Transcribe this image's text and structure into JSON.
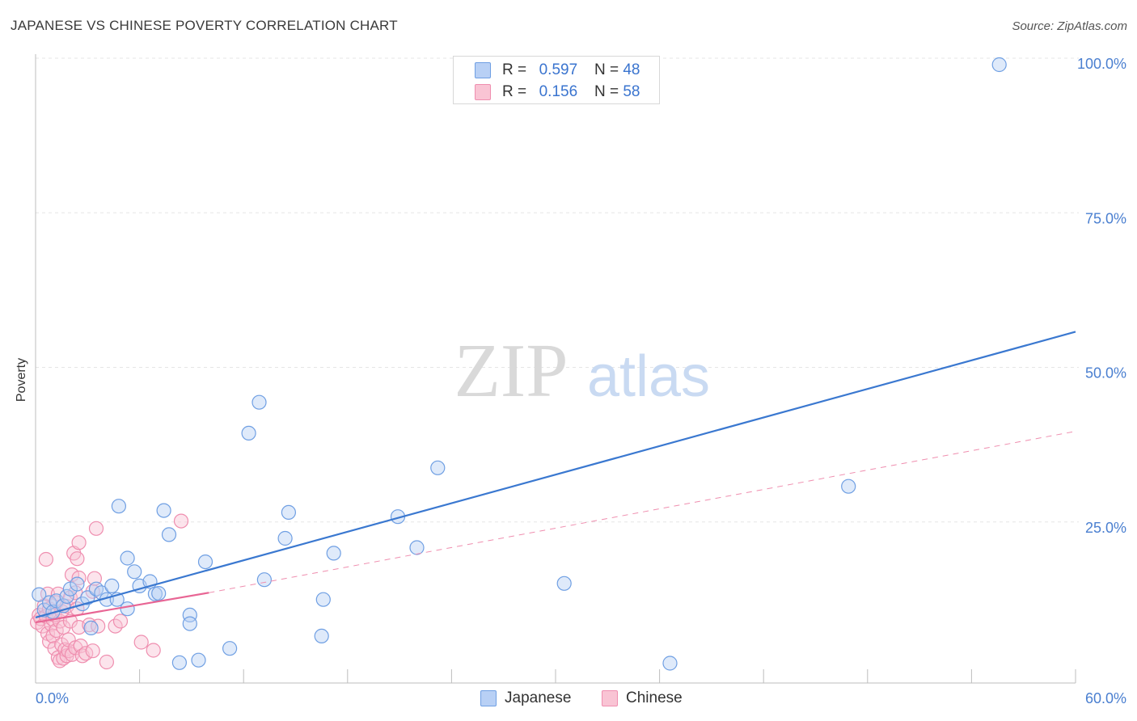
{
  "header": {
    "title": "JAPANESE VS CHINESE POVERTY CORRELATION CHART",
    "source": "Source: ZipAtlas.com"
  },
  "watermark": {
    "zip": "ZIP",
    "atlas": "atlas"
  },
  "legend": {
    "rows": [
      {
        "r_label": "R =",
        "r_value": "0.597",
        "n_label": "N =",
        "n_value": "48",
        "fill": "#b8d0f5",
        "stroke": "#6f9fe3"
      },
      {
        "r_label": "R =",
        "r_value": "0.156",
        "n_label": "N =",
        "n_value": "58",
        "fill": "#f9c4d4",
        "stroke": "#ef8eaf"
      }
    ]
  },
  "bottom_legend": [
    {
      "label": "Japanese",
      "fill": "#b8d0f5",
      "stroke": "#6f9fe3"
    },
    {
      "label": "Chinese",
      "fill": "#f9c4d4",
      "stroke": "#ef8eaf"
    }
  ],
  "chart_data": {
    "type": "scatter",
    "title": "JAPANESE VS CHINESE POVERTY CORRELATION CHART",
    "xlabel": "",
    "ylabel": "Poverty",
    "xlim": [
      0,
      60
    ],
    "ylim": [
      0,
      103
    ],
    "x_tick_labels": [
      "0.0%",
      "60.0%"
    ],
    "y_ticks": [
      25,
      50,
      75,
      100
    ],
    "y_tick_labels": [
      "25.0%",
      "50.0%",
      "75.0%",
      "100.0%"
    ],
    "legend_position": "top-center",
    "grid": true,
    "series": [
      {
        "name": "Japanese",
        "color": "#3a78d0",
        "fill": "#b8d0f5",
        "r": 0.597,
        "n": 48,
        "trend": {
          "x": [
            0,
            60
          ],
          "y": [
            10.6,
            56.8
          ],
          "style": "solid"
        },
        "points": [
          [
            0.2,
            14.3
          ],
          [
            0.5,
            11.8
          ],
          [
            0.8,
            13.0
          ],
          [
            1.0,
            11.5
          ],
          [
            1.2,
            13.3
          ],
          [
            1.6,
            12.5
          ],
          [
            1.8,
            14.0
          ],
          [
            2.0,
            15.2
          ],
          [
            2.4,
            16.0
          ],
          [
            2.7,
            12.8
          ],
          [
            3.0,
            13.8
          ],
          [
            3.2,
            8.9
          ],
          [
            3.5,
            15.2
          ],
          [
            3.8,
            14.6
          ],
          [
            4.1,
            13.5
          ],
          [
            4.4,
            15.7
          ],
          [
            4.7,
            13.5
          ],
          [
            4.8,
            28.6
          ],
          [
            5.3,
            12.0
          ],
          [
            5.3,
            20.2
          ],
          [
            5.7,
            18.0
          ],
          [
            6.0,
            15.7
          ],
          [
            6.6,
            16.4
          ],
          [
            6.9,
            14.4
          ],
          [
            7.1,
            14.5
          ],
          [
            7.4,
            27.9
          ],
          [
            7.7,
            24.0
          ],
          [
            8.3,
            3.3
          ],
          [
            8.9,
            11.0
          ],
          [
            8.9,
            9.6
          ],
          [
            9.4,
            3.7
          ],
          [
            9.8,
            19.6
          ],
          [
            11.2,
            5.6
          ],
          [
            12.3,
            40.4
          ],
          [
            12.9,
            45.4
          ],
          [
            13.2,
            16.7
          ],
          [
            14.4,
            23.4
          ],
          [
            14.6,
            27.6
          ],
          [
            16.5,
            7.6
          ],
          [
            16.6,
            13.5
          ],
          [
            17.2,
            21.0
          ],
          [
            20.9,
            26.9
          ],
          [
            22.0,
            21.9
          ],
          [
            23.2,
            34.8
          ],
          [
            30.5,
            16.1
          ],
          [
            36.6,
            3.2
          ],
          [
            46.9,
            31.8
          ],
          [
            55.6,
            100.0
          ]
        ]
      },
      {
        "name": "Chinese",
        "color": "#e86594",
        "fill": "#f9c4d4",
        "r": 0.156,
        "n": 58,
        "trend": {
          "x": [
            0,
            10
          ],
          "y": [
            9.8,
            14.6
          ],
          "style": "solid",
          "extension": {
            "x": [
              10,
              60
            ],
            "y": [
              14.6,
              40.7
            ],
            "style": "dashed"
          }
        },
        "points": [
          [
            0.1,
            9.8
          ],
          [
            0.2,
            11.0
          ],
          [
            0.3,
            10.4
          ],
          [
            0.4,
            9.2
          ],
          [
            0.5,
            12.5
          ],
          [
            0.6,
            20.0
          ],
          [
            0.6,
            10.8
          ],
          [
            0.7,
            8.0
          ],
          [
            0.7,
            14.4
          ],
          [
            0.8,
            12.0
          ],
          [
            0.8,
            6.7
          ],
          [
            0.9,
            9.5
          ],
          [
            1.0,
            10.3
          ],
          [
            1.0,
            7.6
          ],
          [
            1.1,
            5.6
          ],
          [
            1.1,
            11.0
          ],
          [
            1.2,
            8.5
          ],
          [
            1.2,
            13.0
          ],
          [
            1.3,
            4.1
          ],
          [
            1.3,
            14.4
          ],
          [
            1.4,
            10.0
          ],
          [
            1.4,
            3.6
          ],
          [
            1.5,
            11.6
          ],
          [
            1.5,
            6.2
          ],
          [
            1.6,
            4.0
          ],
          [
            1.6,
            9.0
          ],
          [
            1.7,
            5.4
          ],
          [
            1.8,
            4.4
          ],
          [
            1.8,
            12.4
          ],
          [
            1.9,
            5.2
          ],
          [
            1.9,
            7.0
          ],
          [
            2.0,
            13.8
          ],
          [
            2.0,
            10.0
          ],
          [
            2.1,
            17.5
          ],
          [
            2.1,
            4.6
          ],
          [
            2.2,
            21.0
          ],
          [
            2.3,
            5.7
          ],
          [
            2.3,
            14.6
          ],
          [
            2.4,
            20.1
          ],
          [
            2.4,
            12.0
          ],
          [
            2.5,
            22.7
          ],
          [
            2.5,
            17.0
          ],
          [
            2.5,
            9.0
          ],
          [
            2.6,
            6.0
          ],
          [
            2.7,
            4.4
          ],
          [
            2.9,
            4.8
          ],
          [
            3.1,
            9.4
          ],
          [
            3.3,
            5.2
          ],
          [
            3.3,
            14.8
          ],
          [
            3.4,
            16.9
          ],
          [
            3.5,
            25.0
          ],
          [
            3.6,
            9.2
          ],
          [
            4.1,
            3.4
          ],
          [
            4.6,
            9.2
          ],
          [
            4.9,
            10.0
          ],
          [
            6.1,
            6.6
          ],
          [
            6.8,
            5.3
          ],
          [
            8.4,
            26.2
          ]
        ]
      }
    ]
  }
}
